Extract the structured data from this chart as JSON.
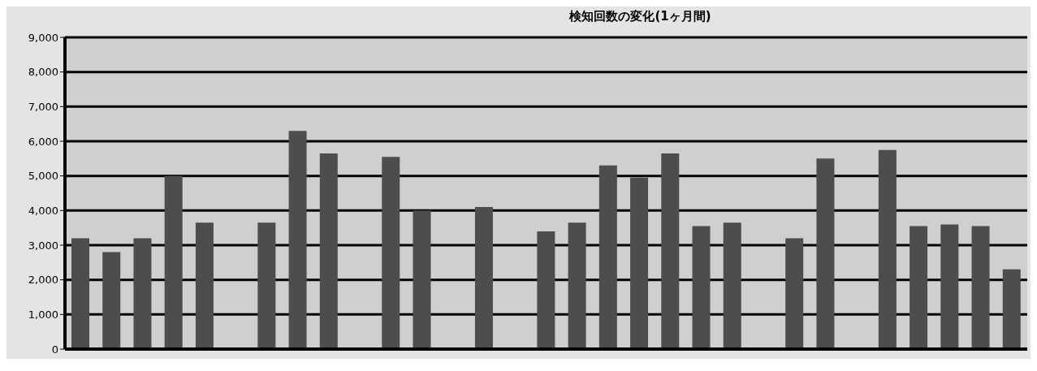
{
  "chart_data": {
    "type": "bar",
    "title": "検知回数の変化(1ヶ月間)",
    "categories": [
      null,
      null,
      null,
      null,
      null,
      null,
      null,
      null,
      null,
      null,
      null,
      null,
      null,
      null,
      null,
      null,
      null,
      null,
      null,
      null,
      null,
      null,
      null,
      null,
      null,
      null,
      null,
      null,
      null,
      null,
      null
    ],
    "values": [
      3200,
      2800,
      3200,
      5000,
      3650,
      null,
      3650,
      6300,
      5650,
      null,
      5550,
      4000,
      null,
      4100,
      null,
      3400,
      3650,
      5300,
      4950,
      5650,
      3550,
      3650,
      null,
      3200,
      5500,
      null,
      5750,
      3550,
      3600,
      3550,
      2300
    ],
    "color": "#4d4d4d",
    "ylim": [
      0,
      9000
    ],
    "yticks": [
      {
        "value": 0,
        "label": "0"
      },
      {
        "value": 1000,
        "label": "1,000"
      },
      {
        "value": 2000,
        "label": "2,000"
      },
      {
        "value": 3000,
        "label": "3,000"
      },
      {
        "value": 4000,
        "label": "4,000"
      },
      {
        "value": 5000,
        "label": "5,000"
      },
      {
        "value": 6000,
        "label": "6,000"
      },
      {
        "value": 7000,
        "label": "7,000"
      },
      {
        "value": 8000,
        "label": "8,000"
      },
      {
        "value": 9000,
        "label": "9,000"
      }
    ],
    "grid": "y"
  }
}
